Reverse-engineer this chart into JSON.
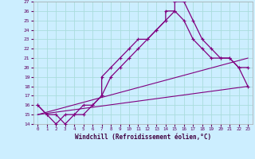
{
  "xlabel": "Windchill (Refroidissement éolien,°C)",
  "background_color": "#cceeff",
  "line_color": "#800080",
  "xlim": [
    -0.5,
    23.5
  ],
  "ylim": [
    14,
    27
  ],
  "yticks": [
    14,
    15,
    16,
    17,
    18,
    19,
    20,
    21,
    22,
    23,
    24,
    25,
    26,
    27
  ],
  "xticks": [
    0,
    1,
    2,
    3,
    4,
    5,
    6,
    7,
    8,
    9,
    10,
    11,
    12,
    13,
    14,
    15,
    16,
    17,
    18,
    19,
    20,
    21,
    22,
    23
  ],
  "grid_color": "#aadddd",
  "series1_x": [
    0,
    1,
    2,
    3,
    4,
    5,
    6,
    7,
    7,
    8,
    9,
    10,
    11,
    12,
    13,
    14,
    14,
    15,
    15,
    16,
    17,
    18,
    19,
    20,
    21,
    22,
    23
  ],
  "series1_y": [
    16,
    15,
    15,
    14,
    15,
    16,
    16,
    17,
    19,
    20,
    21,
    22,
    23,
    23,
    24,
    25,
    26,
    26,
    27,
    27,
    25,
    23,
    22,
    21,
    21,
    20,
    20
  ],
  "series2_x": [
    0,
    1,
    2,
    3,
    4,
    5,
    6,
    7,
    8,
    9,
    10,
    11,
    12,
    13,
    14,
    15,
    16,
    17,
    18,
    19,
    20,
    21,
    22,
    23
  ],
  "series2_y": [
    16,
    15,
    14,
    15,
    15,
    15,
    16,
    17,
    19,
    20,
    21,
    22,
    23,
    24,
    25,
    26,
    25,
    23,
    22,
    21,
    21,
    21,
    20,
    18
  ],
  "series3_x": [
    0,
    23
  ],
  "series3_y": [
    15,
    18
  ],
  "series4_x": [
    0,
    23
  ],
  "series4_y": [
    15,
    21
  ]
}
